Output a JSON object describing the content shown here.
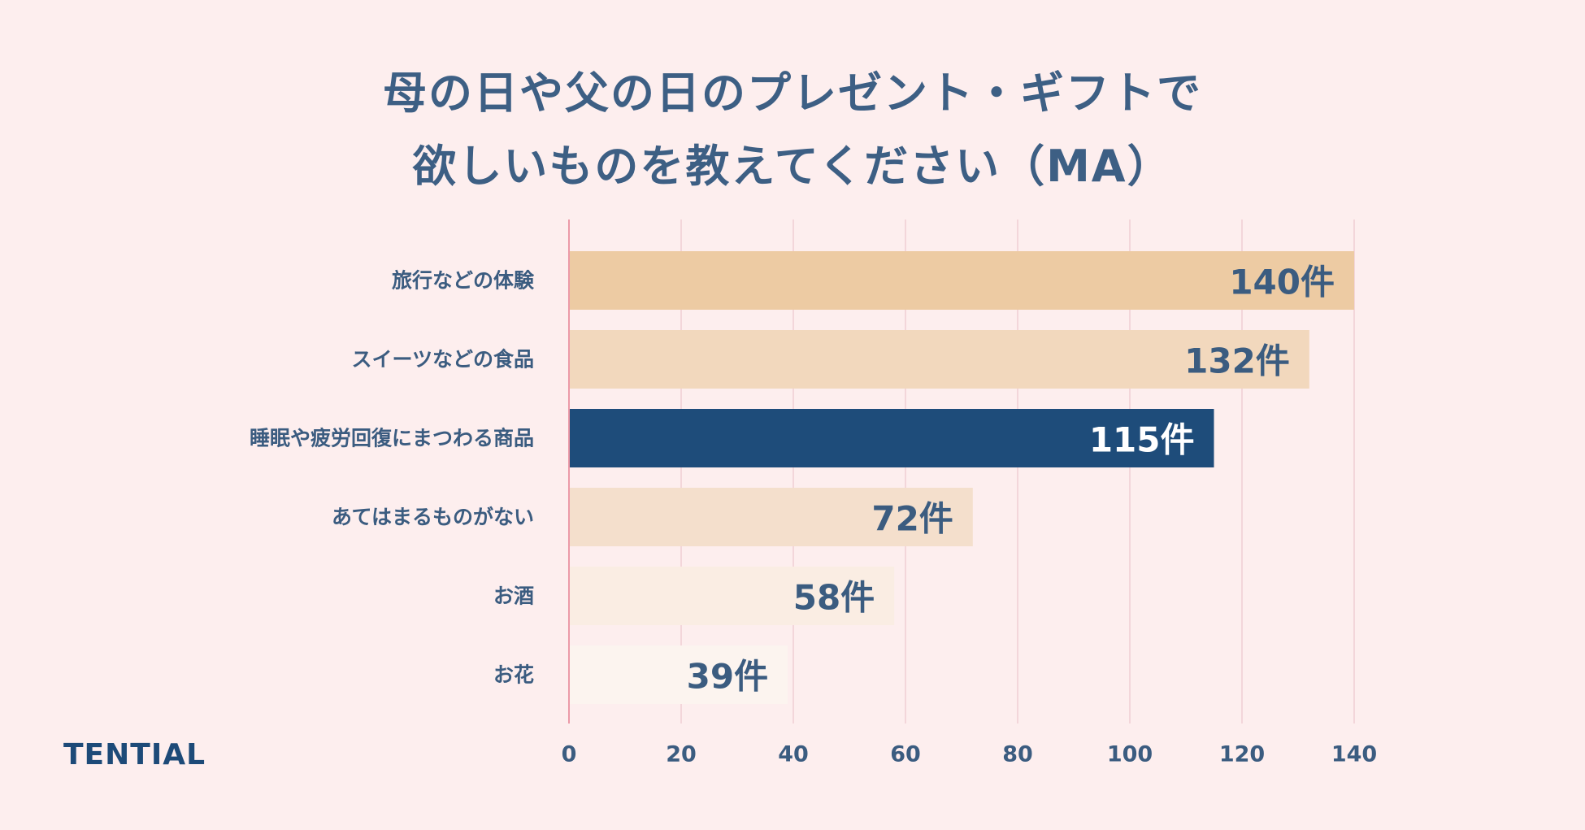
{
  "title_lines": [
    "母の日や父の日のプレゼント・ギフトで",
    "欲しいものを教えてください（MA）"
  ],
  "brand": "TENTIAL",
  "chart_data": {
    "type": "bar",
    "orientation": "horizontal",
    "categories": [
      "旅行などの体験",
      "スイーツなどの食品",
      "睡眠や疲労回復にまつわる商品",
      "あてはまるものがない",
      "お酒",
      "お花"
    ],
    "values": [
      140,
      132,
      115,
      72,
      58,
      39
    ],
    "value_labels": [
      "140件",
      "132件",
      "115件",
      "72件",
      "58件",
      "39件"
    ],
    "bar_colors": [
      "#edcba3",
      "#f2d8bd",
      "#1e4c7a",
      "#f4dfcc",
      "#faede3",
      "#fcf4ef"
    ],
    "label_colors": [
      "#3b5c80",
      "#3b5c80",
      "#ffffff",
      "#3b5c80",
      "#3b5c80",
      "#3b5c80"
    ],
    "xlim": [
      0,
      140
    ],
    "xticks": [
      0,
      20,
      40,
      60,
      80,
      100,
      120,
      140
    ],
    "grid": true,
    "xlabel": "",
    "ylabel": ""
  }
}
